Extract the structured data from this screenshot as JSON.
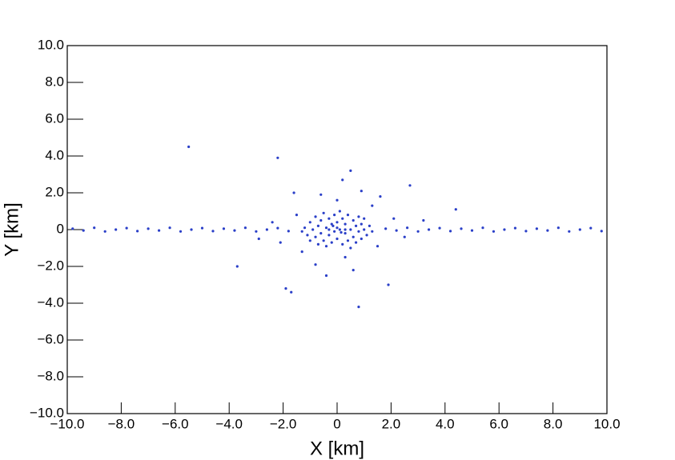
{
  "chart_data": {
    "type": "scatter",
    "xlabel": "X [km]",
    "ylabel": "Y [km]",
    "color": "#2a3fc8",
    "xlim": [
      -10,
      10
    ],
    "ylim": [
      -10,
      10
    ],
    "xticks": [
      {
        "value": -10,
        "label": "−10.0"
      },
      {
        "value": -8,
        "label": "−8.0"
      },
      {
        "value": -6,
        "label": "−6.0"
      },
      {
        "value": -4,
        "label": "−4.0"
      },
      {
        "value": -2,
        "label": "−2.0"
      },
      0,
      {
        "value": 2,
        "label": "2.0"
      },
      {
        "value": 4,
        "label": "4.0"
      },
      {
        "value": 6,
        "label": "6.0"
      },
      {
        "value": 8,
        "label": "8.0"
      },
      {
        "value": 10,
        "label": "10.0"
      }
    ],
    "yticks": [
      {
        "value": -10,
        "label": "−10.0"
      },
      {
        "value": -8,
        "label": "−8.0"
      },
      {
        "value": -6,
        "label": "−6.0"
      },
      {
        "value": -4,
        "label": "−4.0"
      },
      {
        "value": -2,
        "label": "−2.0"
      },
      0,
      {
        "value": 2,
        "label": "2.0"
      },
      {
        "value": 4,
        "label": "4.0"
      },
      {
        "value": 6,
        "label": "6.0"
      },
      {
        "value": 8,
        "label": "8.0"
      },
      {
        "value": 10,
        "label": "10.0"
      }
    ],
    "x": [
      -1.2,
      -1.1,
      -1.0,
      -1.0,
      -0.9,
      -0.8,
      -0.8,
      -0.7,
      -0.7,
      -0.6,
      -0.6,
      -0.5,
      -0.5,
      -0.4,
      -0.4,
      -0.3,
      -0.3,
      -0.2,
      -0.2,
      -0.1,
      -0.1,
      0.0,
      0.0,
      0.1,
      0.1,
      0.2,
      0.2,
      0.3,
      0.3,
      0.4,
      0.4,
      0.5,
      0.5,
      0.6,
      0.6,
      0.7,
      0.7,
      0.8,
      0.8,
      0.9,
      0.9,
      1.0,
      1.0,
      1.1,
      1.2,
      1.3,
      -1.3,
      0.0,
      0.15,
      -0.15,
      0.3,
      -0.3,
      -5.5,
      -2.2,
      0.5,
      -3.7,
      0.8,
      -1.7,
      2.7,
      4.4,
      1.9,
      -1.9,
      -1.5,
      1.5,
      -1.3,
      1.3,
      0.0,
      0.3,
      -0.6,
      0.9,
      -1.6,
      1.6,
      -0.8,
      0.6,
      2.1,
      -2.1,
      2.5,
      -2.4,
      3.2,
      -2.9,
      0.2,
      -0.4,
      -9.8,
      -9.4,
      -9.0,
      -8.6,
      -8.2,
      -7.8,
      -7.4,
      -7.0,
      -6.6,
      -6.2,
      -5.8,
      -5.4,
      -5.0,
      -4.6,
      -4.2,
      -3.8,
      -3.4,
      -3.0,
      -2.6,
      -2.2,
      -1.8,
      1.8,
      2.2,
      2.6,
      3.0,
      3.4,
      3.8,
      4.2,
      4.6,
      5.0,
      5.4,
      5.8,
      6.2,
      6.6,
      7.0,
      7.4,
      7.8,
      8.2,
      8.6,
      9.0,
      9.4,
      9.8
    ],
    "y": [
      0.1,
      -0.3,
      0.4,
      -0.6,
      0.0,
      0.7,
      -0.4,
      0.2,
      -0.8,
      0.5,
      -0.2,
      0.9,
      -0.6,
      0.1,
      -0.9,
      0.6,
      -0.3,
      0.3,
      -0.7,
      0.8,
      -0.1,
      0.4,
      -0.5,
      1.0,
      0.0,
      -0.8,
      0.6,
      -0.2,
      0.3,
      -0.6,
      0.8,
      0.0,
      -1.0,
      0.5,
      -0.4,
      0.2,
      -0.7,
      0.7,
      -0.1,
      0.3,
      -0.5,
      0.0,
      0.6,
      -0.3,
      0.2,
      -0.1,
      -0.1,
      0.1,
      -0.15,
      0.2,
      0.0,
      0.0,
      4.5,
      3.9,
      3.2,
      -2.0,
      -4.2,
      -3.4,
      2.4,
      1.1,
      -3.0,
      -3.2,
      0.8,
      -0.9,
      -1.2,
      1.3,
      1.6,
      -1.5,
      1.9,
      2.1,
      2.0,
      1.8,
      -1.9,
      -2.2,
      0.6,
      -0.7,
      -0.4,
      0.4,
      0.5,
      -0.5,
      2.7,
      -2.5,
      0.05,
      -0.05,
      0.1,
      -0.1,
      0.0,
      0.08,
      -0.08,
      0.05,
      -0.05,
      0.1,
      -0.1,
      0.0,
      0.08,
      -0.08,
      0.05,
      -0.05,
      0.1,
      -0.1,
      0.0,
      0.08,
      -0.08,
      0.05,
      -0.05,
      0.1,
      -0.1,
      0.0,
      0.08,
      -0.08,
      0.05,
      -0.05,
      0.1,
      -0.1,
      0.0,
      0.08,
      -0.08,
      0.05,
      -0.05,
      0.1,
      -0.1,
      0.0,
      0.08,
      -0.08
    ]
  }
}
